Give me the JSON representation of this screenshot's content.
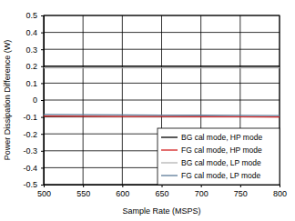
{
  "chart_data": {
    "type": "line",
    "x_label": "Sample Rate (MSPS)",
    "y_label": "Power Dissipation Difference (W)",
    "x": [
      500,
      550,
      600,
      650,
      700,
      750,
      800
    ],
    "xlim": [
      500,
      800
    ],
    "xticks": [
      500,
      550,
      600,
      650,
      700,
      750,
      800
    ],
    "ylim": [
      -0.5,
      0.5
    ],
    "yticks": [
      -0.5,
      -0.4,
      -0.3,
      -0.2,
      -0.1,
      0,
      0.1,
      0.2,
      0.3,
      0.4,
      0.5
    ],
    "grid": true,
    "legend": "lower right",
    "series": [
      {
        "name": "BG cal mode, HP mode",
        "color": "#000000",
        "values": [
          0.2,
          0.2,
          0.2,
          0.2,
          0.2,
          0.2,
          0.2
        ]
      },
      {
        "name": "FG cal mode, HP mode",
        "color": "#d42020",
        "values": [
          -0.095,
          -0.096,
          -0.097,
          -0.097,
          -0.098,
          -0.099,
          -0.1
        ]
      },
      {
        "name": "BG cal mode, LP mode",
        "color": "#b4b4b4",
        "values": [
          0.19,
          0.19,
          0.19,
          0.19,
          0.19,
          0.19,
          0.19
        ]
      },
      {
        "name": "FG cal mode, LP mode",
        "color": "#5b7b98",
        "values": [
          -0.085,
          -0.087,
          -0.088,
          -0.089,
          -0.09,
          -0.091,
          -0.092
        ]
      }
    ]
  }
}
